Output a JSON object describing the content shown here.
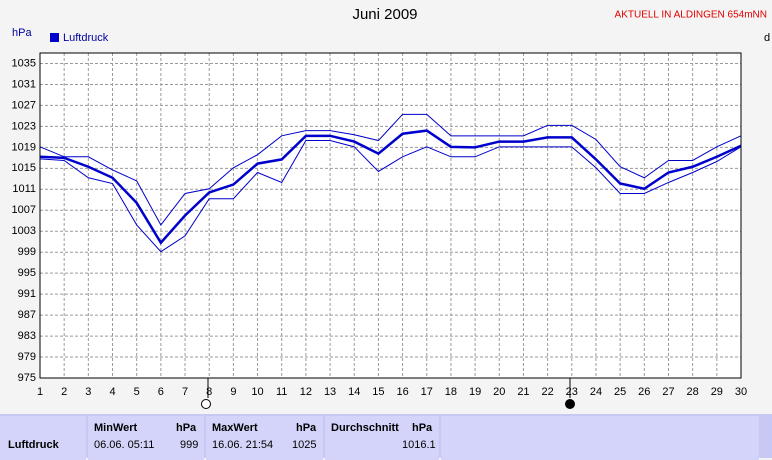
{
  "chart_data": {
    "type": "line",
    "title": "Juni 2009",
    "subtitle": "AKTUELL IN ALDINGEN 654mNN",
    "ylabel": "hPa",
    "y2label": "d",
    "x": [
      1,
      2,
      3,
      4,
      5,
      6,
      7,
      8,
      9,
      10,
      11,
      12,
      13,
      14,
      15,
      16,
      17,
      18,
      19,
      20,
      21,
      22,
      23,
      24,
      25,
      26,
      27,
      28,
      29,
      30
    ],
    "xlim": [
      1,
      30
    ],
    "xticks": [
      1,
      2,
      3,
      4,
      5,
      6,
      7,
      8,
      9,
      10,
      11,
      12,
      13,
      14,
      15,
      16,
      17,
      18,
      19,
      20,
      21,
      22,
      23,
      24,
      25,
      26,
      27,
      28,
      29,
      30
    ],
    "ylim": [
      975,
      1037
    ],
    "yticks": [
      975,
      979,
      983,
      987,
      991,
      995,
      999,
      1003,
      1007,
      1011,
      1015,
      1019,
      1023,
      1027,
      1031,
      1035
    ],
    "grid": true,
    "series": [
      {
        "name": "Luftdruck",
        "color": "#0000cc",
        "values": [
          1017.2,
          1017,
          1015.3,
          1013.2,
          1008.4,
          1000.8,
          1006,
          1010.4,
          1011.9,
          1015.9,
          1016.7,
          1021.2,
          1021.2,
          1020.1,
          1017.8,
          1021.6,
          1022.2,
          1019.1,
          1019,
          1020.1,
          1020.1,
          1020.9,
          1020.9,
          1016.7,
          1012.1,
          1011.1,
          1014.2,
          1015.3,
          1017.2,
          1019.3
        ]
      },
      {
        "color": "#0000cc",
        "values": [
          1019.1,
          1017.2,
          1017.2,
          1014.7,
          1012.6,
          1004.2,
          1010.2,
          1011.1,
          1015.1,
          1017.6,
          1021.2,
          1022.2,
          1022.2,
          1021.4,
          1020.3,
          1025.3,
          1025.3,
          1021.2,
          1021.2,
          1021.2,
          1021.2,
          1023.2,
          1023.2,
          1020.5,
          1015.3,
          1013.2,
          1016.5,
          1016.5,
          1019.1,
          1021.2
        ]
      },
      {
        "color": "#0000cc",
        "values": [
          1016.8,
          1016.5,
          1013.2,
          1012.1,
          1004.2,
          999.1,
          1002.1,
          1009.2,
          1009.2,
          1014.2,
          1012.3,
          1020.3,
          1020.3,
          1019.1,
          1014.4,
          1017.2,
          1019.1,
          1017.2,
          1017.2,
          1019.1,
          1019.1,
          1019.1,
          1019.1,
          1015.1,
          1010.2,
          1010.2,
          1012.3,
          1014.2,
          1016.3,
          1019.1
        ]
      }
    ]
  },
  "table": {
    "header": [
      "MinWert",
      "hPa",
      "MaxWert",
      "hPa",
      "Durchschnitt",
      "hPa"
    ],
    "row": [
      "Luftdruck",
      "06.06.  05:11",
      "999",
      "16.06.  21:54",
      "1025",
      "1016.1"
    ]
  }
}
